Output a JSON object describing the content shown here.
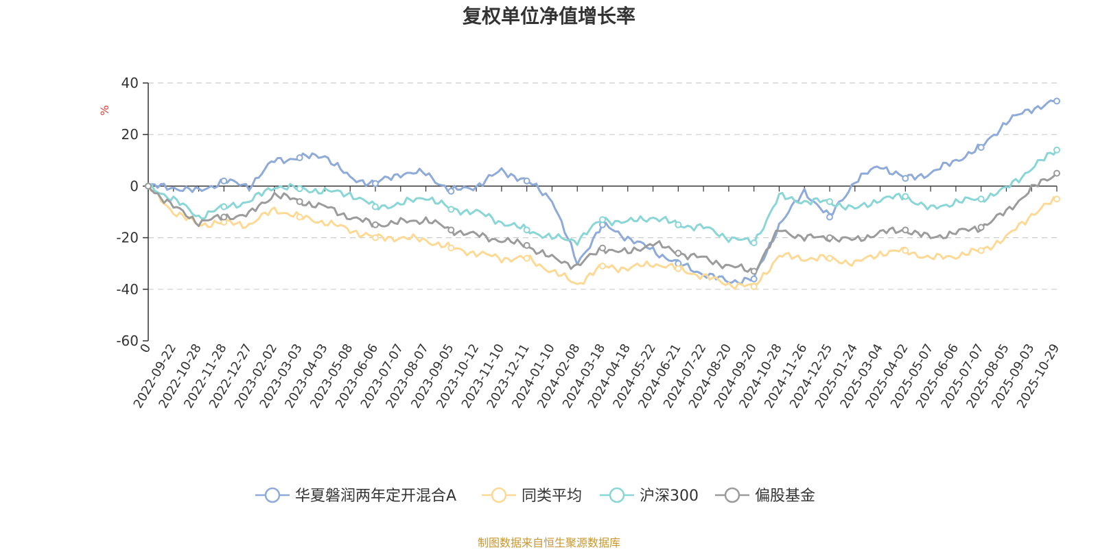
{
  "chart_data": {
    "type": "line",
    "title": "复权单位净值增长率",
    "ylabel": "%",
    "ylim": [
      -60,
      40
    ],
    "yticks": [
      -60,
      -40,
      -20,
      0,
      20,
      40
    ],
    "grid": true,
    "legend_position": "bottom",
    "x": [
      "0",
      "2022-09-22",
      "2022-10-28",
      "2022-11-28",
      "2022-12-27",
      "2023-02-02",
      "2023-03-03",
      "2023-04-03",
      "2023-05-08",
      "2023-06-06",
      "2023-07-07",
      "2023-08-07",
      "2023-09-05",
      "2023-10-12",
      "2023-11-10",
      "2023-12-11",
      "2024-01-10",
      "2024-02-08",
      "2024-03-18",
      "2024-04-18",
      "2024-05-22",
      "2024-06-21",
      "2024-07-22",
      "2024-08-20",
      "2024-09-20",
      "2024-10-28",
      "2024-11-26",
      "2024-12-25",
      "2025-01-24",
      "2025-03-04",
      "2025-04-02",
      "2025-05-07",
      "2025-06-06",
      "2025-07-07",
      "2025-08-05",
      "2025-09-03",
      "2025-10-29"
    ],
    "series": [
      {
        "name": "华夏磐润两年定开混合A",
        "color": "#8eaad8",
        "values": [
          0,
          -0.5,
          -2,
          2,
          0,
          10,
          11,
          12,
          3,
          1,
          5,
          5,
          -2,
          0,
          6,
          2,
          -5,
          -30,
          -15,
          -20,
          -25,
          -30,
          -34,
          -37,
          -36,
          -15,
          -2,
          -12,
          2,
          8,
          3,
          5,
          10,
          15,
          25,
          30,
          33
        ]
      },
      {
        "name": "同类平均",
        "color": "#fdd996",
        "values": [
          0,
          -10,
          -15,
          -14,
          -15,
          -9,
          -12,
          -14,
          -17,
          -20,
          -20,
          -21,
          -24,
          -26,
          -28,
          -28,
          -33,
          -38,
          -31,
          -32,
          -30,
          -32,
          -35,
          -38,
          -39,
          -27,
          -28,
          -28,
          -30,
          -26,
          -25,
          -28,
          -27,
          -25,
          -20,
          -11,
          -5
        ]
      },
      {
        "name": "沪深300",
        "color": "#8ad6d6",
        "values": [
          0,
          -5,
          -12,
          -8,
          -6,
          0,
          -1,
          -2,
          -3,
          -8,
          -7,
          -4,
          -9,
          -10,
          -14,
          -17,
          -20,
          -21,
          -13,
          -14,
          -12,
          -15,
          -16,
          -20,
          -22,
          -4,
          -6,
          -6,
          -9,
          -5,
          -4,
          -9,
          -6,
          -5,
          -1,
          7,
          14
        ]
      },
      {
        "name": "偏股基金",
        "color": "#9b9b9b",
        "values": [
          0,
          -8,
          -14,
          -12,
          -11,
          -3,
          -6,
          -8,
          -12,
          -15,
          -14,
          -13,
          -17,
          -19,
          -21,
          -23,
          -28,
          -31,
          -24,
          -26,
          -22,
          -26,
          -28,
          -31,
          -33,
          -17,
          -20,
          -20,
          -21,
          -18,
          -17,
          -20,
          -18,
          -16,
          -10,
          -1,
          5
        ]
      }
    ]
  },
  "source": "制图数据来自恒生聚源数据库"
}
